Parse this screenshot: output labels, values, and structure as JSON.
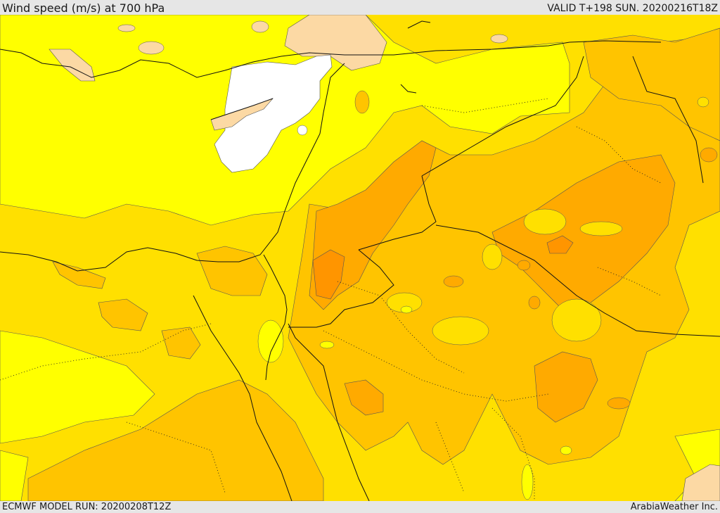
{
  "header": {
    "title": "Wind speed (m/s) at 700 hPa",
    "valid": "VALID T+198 SUN. 20200216T18Z"
  },
  "footer": {
    "model_run": "ECMWF MODEL RUN: 20200208T12Z",
    "credit": "ArabiaWeather Inc."
  },
  "colors": {
    "level_lowest": "#ffffff",
    "level_low": "#fcd9a4",
    "level_1": "#ffff00",
    "level_2": "#ffe000",
    "level_3": "#ffc400",
    "level_4": "#ffaa00",
    "level_5": "#ff9500"
  }
}
